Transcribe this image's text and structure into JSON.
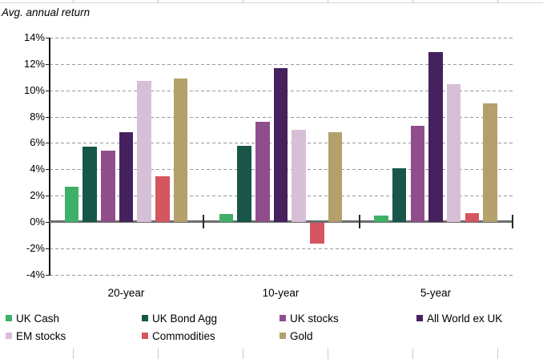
{
  "chart_data": {
    "type": "bar",
    "title": "Avg. annual return",
    "categories": [
      "20-year",
      "10-year",
      "5-year"
    ],
    "series": [
      {
        "name": "UK Cash",
        "color": "#3fb068",
        "values": [
          2.7,
          0.6,
          0.5
        ]
      },
      {
        "name": "UK Bond Agg",
        "color": "#175649",
        "values": [
          5.7,
          5.8,
          4.1
        ]
      },
      {
        "name": "UK stocks",
        "color": "#8f4e8b",
        "values": [
          5.4,
          7.6,
          7.3
        ]
      },
      {
        "name": "All World ex UK",
        "color": "#45215e",
        "values": [
          6.8,
          11.7,
          12.9
        ]
      },
      {
        "name": "EM stocks",
        "color": "#d6c0d8",
        "values": [
          10.7,
          7.0,
          10.5
        ]
      },
      {
        "name": "Commodities",
        "color": "#d5565f",
        "values": [
          3.5,
          -1.6,
          0.7
        ]
      },
      {
        "name": "Gold",
        "color": "#b3a06b",
        "values": [
          10.9,
          6.8,
          9.0
        ]
      }
    ],
    "y_axis": {
      "tick_labels": [
        "14%",
        "12%",
        "10%",
        "8%",
        "6%",
        "4%",
        "2%",
        "0%",
        "-2%",
        "-4%"
      ],
      "max": 14,
      "min": -4,
      "step": 2,
      "unit": "%"
    },
    "xlabel": "",
    "ylabel": "",
    "grid": "horizontal-dashed",
    "legend_position": "bottom",
    "legend_rows": [
      [
        "UK Cash",
        "UK Bond Agg",
        "UK stocks",
        "All World ex UK"
      ],
      [
        "EM stocks",
        "Commodities",
        "Gold"
      ]
    ]
  }
}
